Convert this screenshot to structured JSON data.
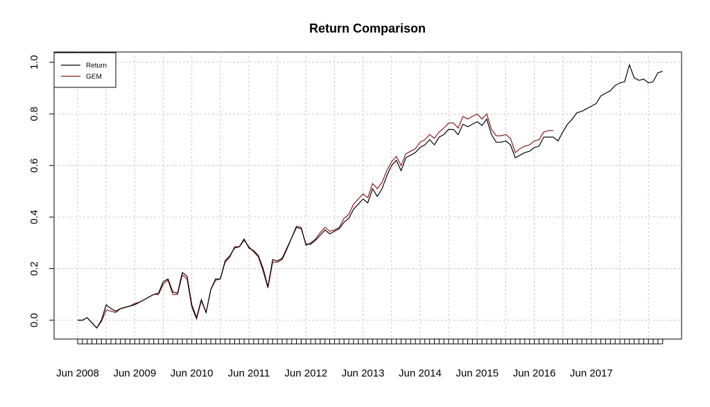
{
  "chart_data": {
    "type": "line",
    "title": "Return Comparison",
    "categories": [
      "Jun 2008",
      null,
      null,
      null,
      null,
      null,
      null,
      null,
      null,
      null,
      null,
      null,
      "Jun 2009",
      null,
      null,
      null,
      null,
      null,
      null,
      null,
      null,
      null,
      null,
      null,
      "Jun 2010",
      null,
      null,
      null,
      null,
      null,
      null,
      null,
      null,
      null,
      null,
      null,
      "Jun 2011",
      null,
      null,
      null,
      null,
      null,
      null,
      null,
      null,
      null,
      null,
      null,
      "Jun 2012",
      null,
      null,
      null,
      null,
      null,
      null,
      null,
      null,
      null,
      null,
      null,
      "Jun 2013",
      null,
      null,
      null,
      null,
      null,
      null,
      null,
      null,
      null,
      null,
      null,
      "Jun 2014",
      null,
      null,
      null,
      null,
      null,
      null,
      null,
      null,
      null,
      null,
      null,
      "Jun 2015",
      null,
      null,
      null,
      null,
      null,
      null,
      null,
      null,
      null,
      null,
      null,
      "Jun 2016",
      null,
      null,
      null,
      null,
      null,
      null,
      null,
      null,
      null,
      null,
      null,
      "Jun 2017",
      null,
      null,
      null,
      null,
      null,
      null,
      null,
      null,
      null,
      null,
      null,
      null,
      null,
      null,
      null
    ],
    "series": [
      {
        "name": "Return",
        "color": "#000000",
        "values": [
          0,
          0,
          0.01,
          -0.01,
          -0.03,
          0,
          0.06,
          0.045,
          0.035,
          0.045,
          0.05,
          0.055,
          0.06,
          0.07,
          0.08,
          0.09,
          0.1,
          0.105,
          0.15,
          0.16,
          0.11,
          0.105,
          0.185,
          0.17,
          0.06,
          0.01,
          0.08,
          0.03,
          0.12,
          0.16,
          0.16,
          0.23,
          0.25,
          0.28,
          0.285,
          0.315,
          0.28,
          0.27,
          0.25,
          0.2,
          0.13,
          0.235,
          0.23,
          0.24,
          0.28,
          0.32,
          0.36,
          0.355,
          0.295,
          0.295,
          0.31,
          0.33,
          0.35,
          0.335,
          0.345,
          0.355,
          0.38,
          0.395,
          0.43,
          0.45,
          0.47,
          0.455,
          0.51,
          0.48,
          0.51,
          0.56,
          0.6,
          0.62,
          0.58,
          0.63,
          0.64,
          0.65,
          0.67,
          0.68,
          0.7,
          0.68,
          0.71,
          0.72,
          0.74,
          0.74,
          0.72,
          0.76,
          0.75,
          0.76,
          0.77,
          0.755,
          0.78,
          0.72,
          0.69,
          0.69,
          0.695,
          0.68,
          0.63,
          0.64,
          0.65,
          0.655,
          0.67,
          0.675,
          0.71,
          0.71,
          0.71,
          0.695,
          0.73,
          0.76,
          0.78,
          0.805,
          0.81,
          0.82,
          0.83,
          0.84,
          0.87,
          0.88,
          0.89,
          0.91,
          0.92,
          0.925,
          0.99,
          0.94,
          0.93,
          0.935,
          0.92,
          0.925,
          0.96,
          0.965
        ]
      },
      {
        "name": "GEM",
        "color": "#8b1a1a",
        "values": [
          0,
          0,
          0.01,
          -0.01,
          -0.03,
          -0.005,
          0.04,
          0.035,
          0.03,
          0.045,
          0.05,
          0.055,
          0.065,
          0.07,
          0.08,
          0.09,
          0.1,
          0.1,
          0.14,
          0.155,
          0.1,
          0.1,
          0.175,
          0.16,
          0.05,
          0.005,
          0.075,
          0.03,
          0.12,
          0.155,
          0.16,
          0.225,
          0.245,
          0.285,
          0.285,
          0.31,
          0.285,
          0.265,
          0.245,
          0.19,
          0.125,
          0.225,
          0.225,
          0.235,
          0.275,
          0.32,
          0.365,
          0.36,
          0.29,
          0.3,
          0.315,
          0.34,
          0.36,
          0.345,
          0.35,
          0.36,
          0.395,
          0.41,
          0.45,
          0.47,
          0.49,
          0.475,
          0.53,
          0.51,
          0.535,
          0.58,
          0.615,
          0.635,
          0.6,
          0.645,
          0.655,
          0.665,
          0.69,
          0.7,
          0.72,
          0.705,
          0.73,
          0.745,
          0.765,
          0.765,
          0.745,
          0.79,
          0.78,
          0.79,
          0.8,
          0.78,
          0.8,
          0.74,
          0.715,
          0.715,
          0.72,
          0.705,
          0.65,
          0.665,
          0.675,
          0.68,
          0.695,
          0.7,
          0.73,
          0.735,
          0.735,
          null,
          null,
          null,
          null,
          null,
          null,
          null,
          null,
          null,
          null,
          null,
          null,
          null,
          null,
          null,
          null,
          null,
          null,
          null,
          null,
          null,
          null,
          null
        ]
      }
    ],
    "ylim": [
      -0.073,
      1.04
    ],
    "yticks": [
      {
        "value": 0,
        "label": "0.0"
      },
      0.2,
      0.4,
      0.6,
      0.8,
      {
        "value": 1,
        "label": "1.0"
      }
    ],
    "grid": true,
    "legend": "top-left"
  }
}
